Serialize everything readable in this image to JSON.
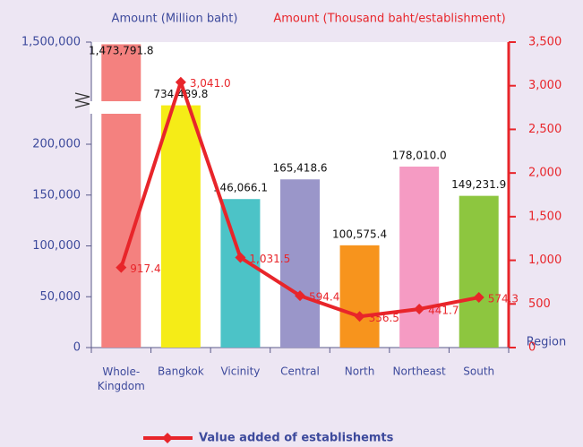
{
  "chart_data": {
    "type": "bar_line",
    "y_axis_label": "Amount (Million baht)",
    "y2_axis_label": "Amount (Thousand baht/establishment)",
    "x_axis_label": "Region",
    "categories": [
      "Whole-Kingdom",
      "Bangkok",
      "Vicinity",
      "Central",
      "North",
      "Northeast",
      "South"
    ],
    "bars": {
      "values": [
        1473791.8,
        734489.8,
        146066.1,
        165418.6,
        100575.4,
        178010.0,
        149231.9
      ],
      "value_labels": [
        "1,473,791.8",
        "734,489.8",
        "146,066.1",
        "165,418.6",
        "100,575.4",
        "178,010.0",
        "149,231.9"
      ],
      "colors": [
        "#f4817f",
        "#f5ec17",
        "#4cc3c7",
        "#9a96c9",
        "#f7941d",
        "#f59bc3",
        "#8dc63f"
      ]
    },
    "series": [
      {
        "name": "Value added of establishemts",
        "color": "#e8252a",
        "axis": "y2",
        "values": [
          917.4,
          3041.0,
          1031.5,
          594.4,
          356.5,
          441.7,
          574.3
        ],
        "value_labels": [
          "917.4",
          "3,041.0",
          "1,031.5",
          "594.4",
          "356.5",
          "441.7",
          "574.3"
        ]
      }
    ],
    "ylim": [
      0,
      1500000
    ],
    "axis_break": [
      200000,
      600000
    ],
    "yticks": [
      0,
      {
        "value": 50000,
        "label": "50,000"
      },
      {
        "value": 100000,
        "label": "100,000"
      },
      {
        "value": 150000,
        "label": "150,000"
      },
      {
        "value": 200000,
        "label": "200,000"
      },
      {
        "value": 1500000,
        "label": "1,500,000"
      }
    ],
    "y2lim": [
      0,
      3500
    ],
    "y2ticks": [
      0,
      500,
      {
        "value": 1000,
        "label": "1,000"
      },
      {
        "value": 1500,
        "label": "1,500"
      },
      {
        "value": 2000,
        "label": "2,000"
      },
      {
        "value": 2500,
        "label": "2,500"
      },
      {
        "value": 3000,
        "label": "3,000"
      },
      {
        "value": 3500,
        "label": "3,500"
      }
    ],
    "legend": "bottom"
  }
}
